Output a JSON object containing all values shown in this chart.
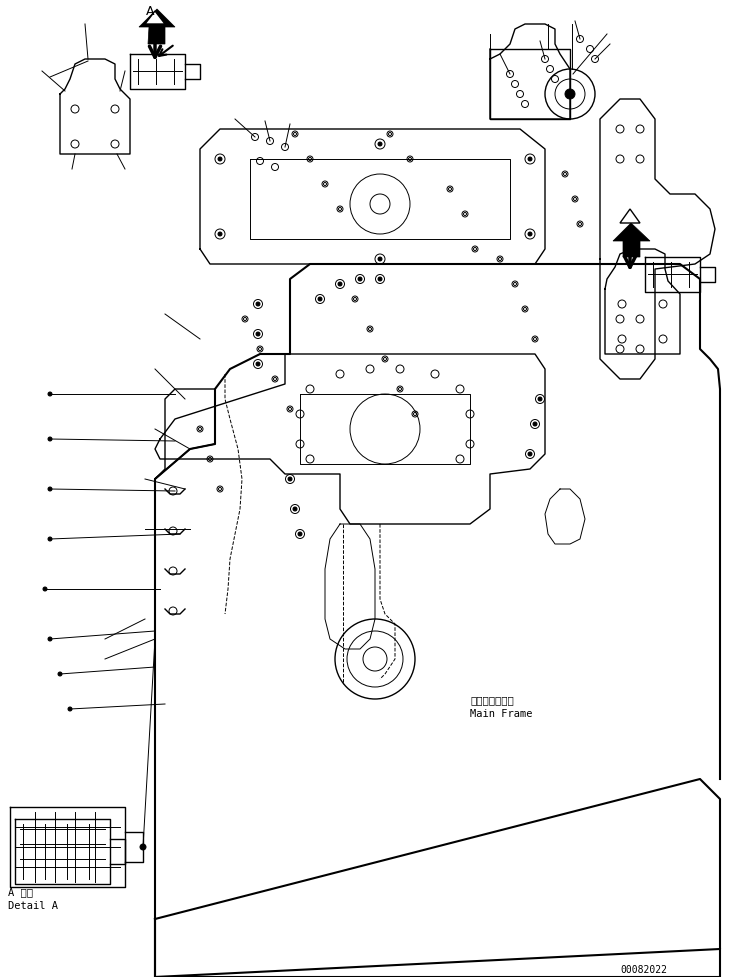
{
  "bg_color": "#ffffff",
  "line_color": "#000000",
  "title": "",
  "part_number": "00082022",
  "label_detail_a_jp": "A 詳細",
  "label_detail_a_en": "Detail A",
  "label_main_frame_jp": "メインフレーム",
  "label_main_frame_en": "Main Frame",
  "label_a": "A",
  "fig_size": [
    7.33,
    9.78
  ],
  "dpi": 100
}
